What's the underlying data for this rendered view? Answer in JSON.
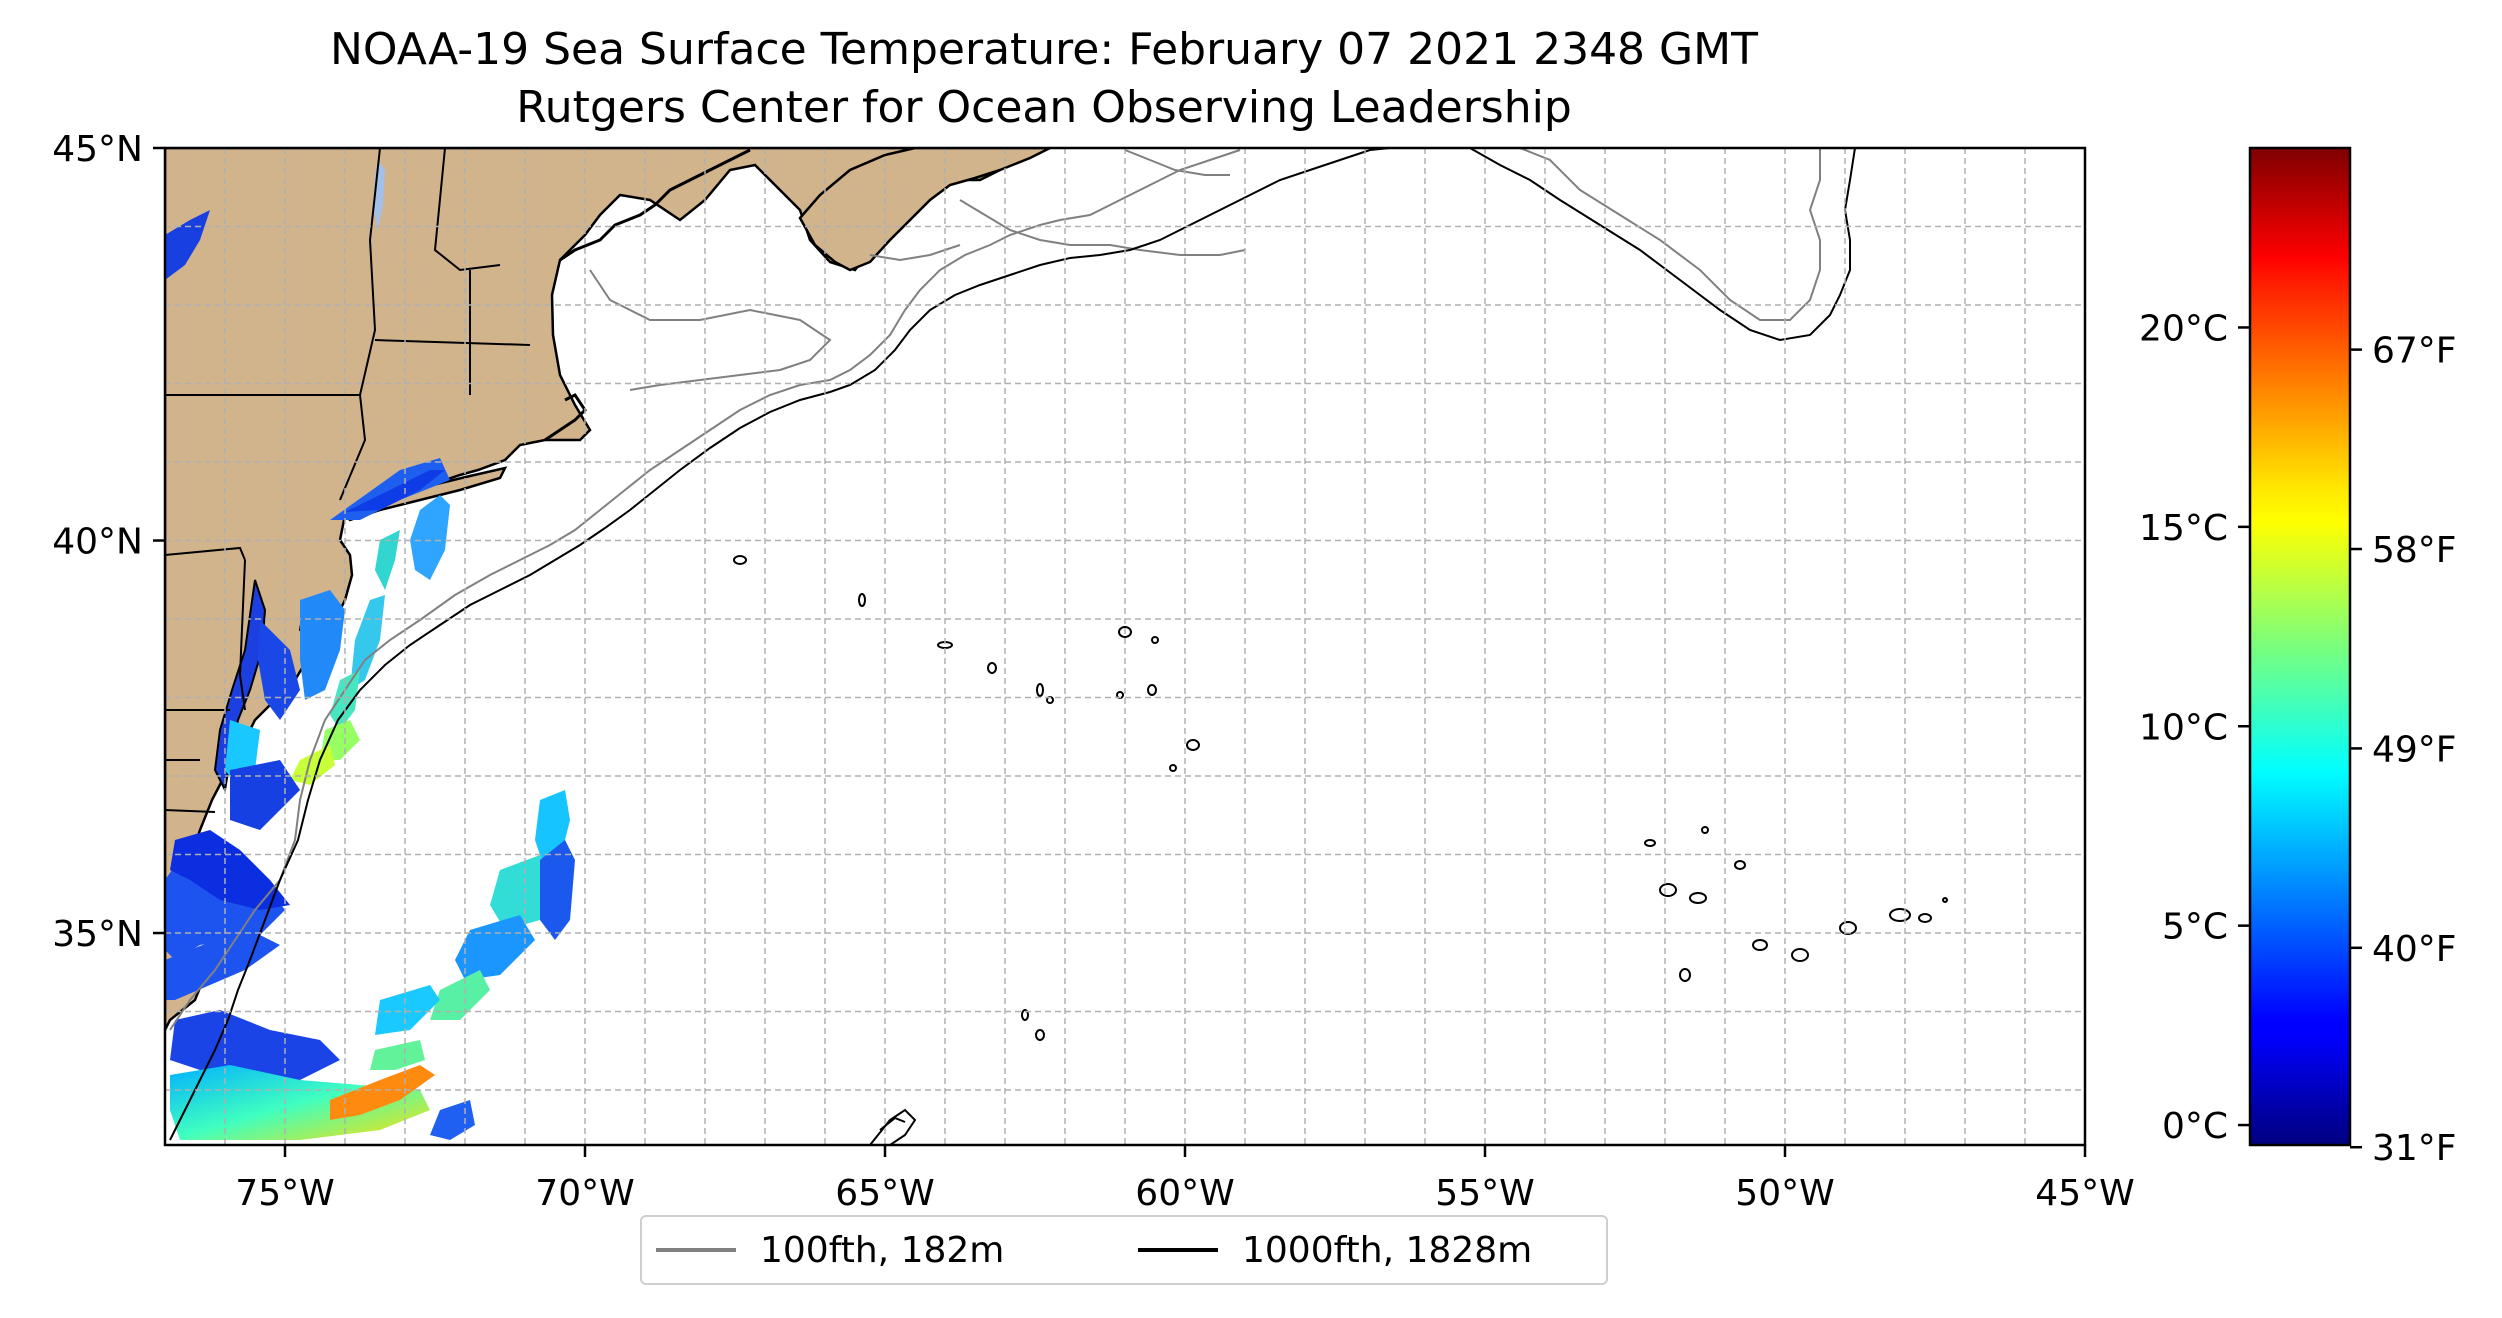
{
  "title": "NOAA-19 Sea Surface Temperature: February 07 2021 2348 GMT",
  "subtitle": "Rutgers Center for Ocean Observing Leadership",
  "map": {
    "type": "sea-surface-temperature-map",
    "lon_range": [
      -77,
      -45
    ],
    "lat_range": [
      32.3,
      45
    ],
    "lon_tick_values": [
      -75,
      -70,
      -65,
      -60,
      -55,
      -50,
      -45
    ],
    "lon_ticks": [
      "75°W",
      "70°W",
      "65°W",
      "60°W",
      "55°W",
      "50°W",
      "45°W"
    ],
    "lat_tick_values": [
      35,
      40,
      45
    ],
    "lat_ticks": [
      "35°N",
      "40°N",
      "45°N"
    ],
    "grid": true,
    "land_color": "#d2b48c",
    "water_color": "#ffffff"
  },
  "legend": {
    "placement": "bottom-center",
    "items": [
      {
        "label": "100fth, 182m",
        "color": "#808080"
      },
      {
        "label": "1000fth, 1828m",
        "color": "#000000"
      }
    ]
  },
  "colorbar": {
    "colormap": "jet",
    "celsius_ticks": [
      "0°C",
      "5°C",
      "10°C",
      "15°C",
      "20°C"
    ],
    "celsius_values": [
      0,
      5,
      10,
      15,
      20
    ],
    "fahrenheit_ticks": [
      "31°F",
      "40°F",
      "49°F",
      "58°F",
      "67°F"
    ],
    "fahrenheit_values": [
      31,
      40,
      49,
      58,
      67
    ],
    "range_celsius": [
      -0.5,
      24.5
    ]
  }
}
